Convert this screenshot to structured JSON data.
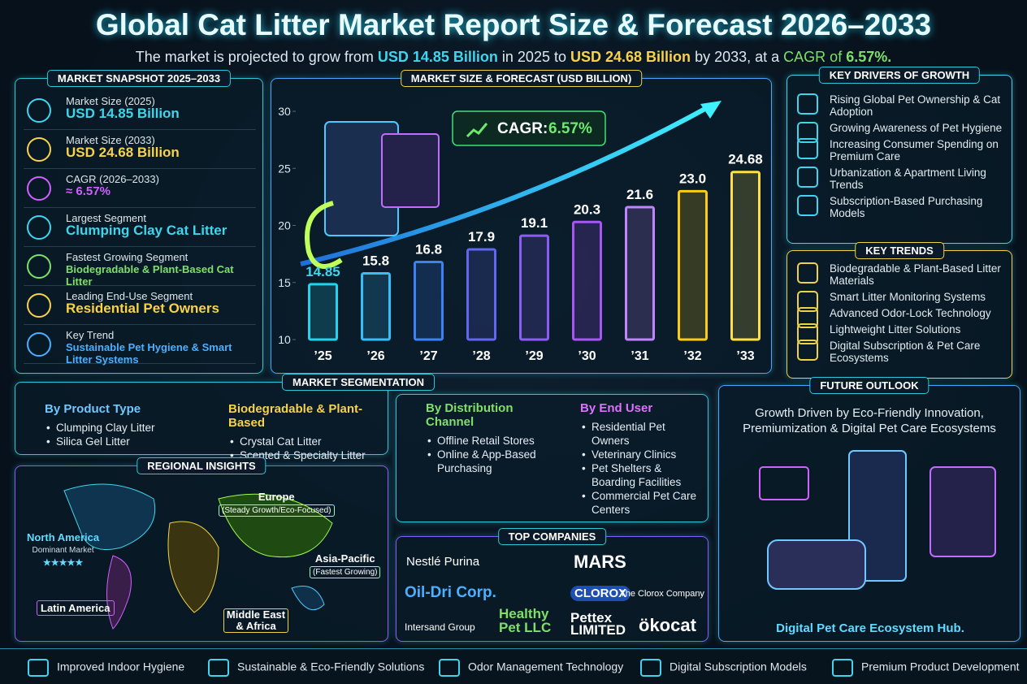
{
  "header": {
    "title": "Global Cat Litter Market Report Size & Forecast 2026–2033",
    "subtitle": {
      "pre": "The market is projected to grow from",
      "start": "USD 14.85 Billion",
      "mid": "in 2025 to",
      "end": "USD 24.68 Billion",
      "post": "by 2033, at a",
      "cagr_label": "CAGR of",
      "cagr": "6.57%."
    }
  },
  "snapshot": {
    "title": "MARKET SNAPSHOT 2025–2033",
    "items": [
      {
        "label": "Market Size (2025)",
        "value": "USD 14.85 Billion"
      },
      {
        "label": "Market Size (2033)",
        "value": "USD 24.68 Billion"
      },
      {
        "label": "CAGR (2026–2033)",
        "value": "≈ 6.57%"
      },
      {
        "label": "Largest Segment",
        "value": "Clumping Clay Cat Litter"
      },
      {
        "label": "Fastest Growing Segment",
        "value": "Biodegradable & Plant-Based Cat Litter"
      },
      {
        "label": "Leading End-Use Segment",
        "value": "Residential Pet Owners"
      },
      {
        "label": "Key Trend",
        "value": "Sustainable Pet Hygiene & Smart Litter Systems"
      }
    ]
  },
  "forecast": {
    "type": "bar",
    "title": "MARKET SIZE & FORECAST (USD BILLION)",
    "cagr_label": "CAGR:",
    "cagr_value": "6.57%",
    "categories": [
      "’25",
      "’26",
      "’27",
      "’28",
      "’29",
      "’30",
      "’31",
      "’32",
      "’33"
    ],
    "values": [
      14.85,
      15.8,
      16.8,
      17.9,
      19.1,
      20.3,
      21.6,
      23.0,
      24.68
    ],
    "value_labels": [
      "14.85",
      "15.8",
      "16.8",
      "17.9",
      "19.1",
      "20.3",
      "21.6",
      "23.0",
      "24.68"
    ],
    "colors": [
      "#22d3ee",
      "#38bdf8",
      "#3b82f6",
      "#6366f1",
      "#8b5cf6",
      "#a855f7",
      "#c084fc",
      "#facc15",
      "#fde047"
    ],
    "ylim": [
      10,
      30
    ],
    "yticks": [
      10,
      15,
      20,
      25,
      30
    ]
  },
  "drivers": {
    "title": "KEY DRIVERS OF GROWTH",
    "items": [
      "Rising Global Pet Ownership & Cat Adoption",
      "Growing Awareness of Pet Hygiene",
      "Increasing Consumer Spending on Premium Care",
      "Urbanization & Apartment Living Trends",
      "Subscription-Based Purchasing Models"
    ]
  },
  "trends": {
    "title": "KEY TRENDS",
    "items": [
      "Biodegradable & Plant-Based Litter Materials",
      "Smart Litter Monitoring Systems",
      "Advanced Odor-Lock Technology",
      "Lightweight Litter Solutions",
      "Digital Subscription & Pet Care Ecosystems"
    ]
  },
  "segmentation": {
    "title": "MARKET SEGMENTATION",
    "groups": [
      {
        "title": "By Product Type",
        "items": [
          "Clumping Clay Litter",
          "Silica Gel Litter"
        ]
      },
      {
        "title": "Biodegradable & Plant-Based",
        "items": [
          "Crystal Cat Litter",
          "Scented & Specialty Litter"
        ]
      },
      {
        "title": "By Distribution Channel",
        "items": [
          "Offline Retail Stores",
          "Online & App-Based Purchasing"
        ]
      },
      {
        "title": "By End User",
        "items": [
          "Residential Pet Owners",
          "Veterinary Clinics",
          "Pet Shelters & Boarding Facilities",
          "Commercial Pet Care Centers"
        ]
      }
    ]
  },
  "regional": {
    "title": "REGIONAL INSIGHTS",
    "north_america": {
      "name": "North America",
      "note": "Dominant Market",
      "rating": "★★★★★"
    },
    "europe": {
      "name": "Europe",
      "note": "(Steady Growth/Eco-Focused)"
    },
    "asia_pacific": {
      "name": "Asia-Pacific",
      "note": "(Fastest Growing)"
    },
    "latin_america": {
      "name": "Latin America"
    },
    "mea": {
      "name": "Middle East & Africa"
    }
  },
  "companies": {
    "title": "TOP COMPANIES",
    "names": [
      "Nestlé Purina",
      "MARS",
      "Oil-Dri Corp.",
      "CLOROX",
      "The Clorox Company",
      "Intersand Group",
      "Healthy Pet LLC",
      "Pettex LIMITED",
      "ökocat"
    ]
  },
  "outlook": {
    "title": "FUTURE OUTLOOK",
    "headline": "Growth Driven by Eco-Friendly Innovation, Premiumization & Digital Pet Care Ecosystems",
    "caption": "Digital Pet Care Ecosystem Hub."
  },
  "footer": {
    "items": [
      "Improved Indoor Hygiene",
      "Sustainable & Eco-Friendly Solutions",
      "Odor Management Technology",
      "Digital Subscription Models",
      "Premium Product Development"
    ]
  }
}
